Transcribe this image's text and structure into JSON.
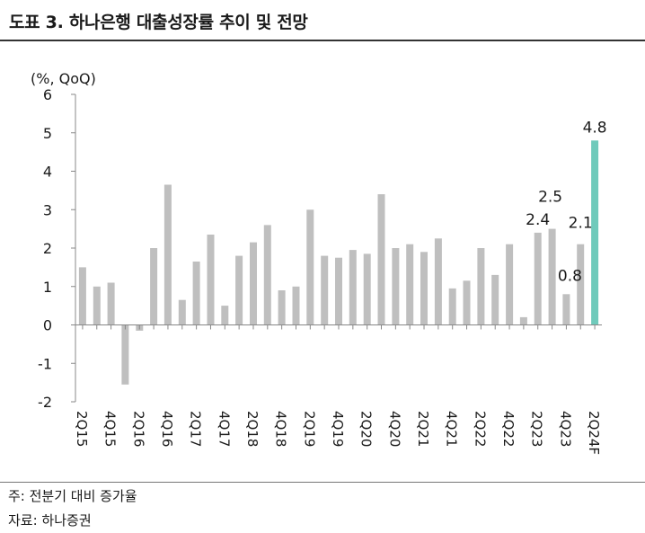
{
  "header": {
    "title": "도표 3. 하나은행 대출성장률 추이 및 전망"
  },
  "footer": {
    "note": "주: 전분기 대비 증가율",
    "source": "자료: 하나증권"
  },
  "colors": {
    "bar": "#bfbfbf",
    "highlight": "#6fcabb",
    "axis": "#888888",
    "text": "#1a1a1a"
  },
  "chart_data": {
    "type": "bar",
    "title": "",
    "unit_label": "(%, QoQ)",
    "ylim": [
      -2,
      6
    ],
    "yticks": [
      -2,
      -1,
      0,
      1,
      2,
      3,
      4,
      5,
      6
    ],
    "grid": false,
    "categories": [
      "2Q15",
      "3Q15",
      "4Q15",
      "1Q16",
      "2Q16",
      "3Q16",
      "4Q16",
      "1Q17",
      "2Q17",
      "3Q17",
      "4Q17",
      "1Q18",
      "2Q18",
      "3Q18",
      "4Q18",
      "1Q19",
      "2Q19",
      "3Q19",
      "4Q19",
      "1Q20",
      "2Q20",
      "3Q20",
      "4Q20",
      "1Q21",
      "2Q21",
      "3Q21",
      "4Q21",
      "1Q22",
      "2Q22",
      "3Q22",
      "4Q22",
      "1Q23",
      "2Q23",
      "3Q23",
      "4Q23",
      "1Q24",
      "2Q24F"
    ],
    "tick_labels": [
      "2Q15",
      "4Q15",
      "2Q16",
      "4Q16",
      "2Q17",
      "4Q17",
      "2Q18",
      "4Q18",
      "2Q19",
      "4Q19",
      "2Q20",
      "4Q20",
      "2Q21",
      "4Q21",
      "2Q22",
      "4Q22",
      "2Q23",
      "4Q23",
      "2Q24F"
    ],
    "values": [
      1.5,
      1.0,
      1.1,
      -1.55,
      -0.15,
      2.0,
      3.65,
      0.65,
      1.65,
      2.35,
      0.5,
      1.8,
      2.15,
      2.6,
      0.9,
      1.0,
      3.0,
      1.8,
      1.75,
      1.95,
      1.85,
      3.4,
      2.0,
      2.1,
      1.9,
      2.25,
      0.95,
      1.15,
      2.0,
      1.3,
      2.1,
      0.2,
      2.4,
      2.5,
      0.8,
      2.1,
      4.8
    ],
    "highlight_index": 36,
    "data_labels": [
      {
        "index": 32,
        "text": "2.4"
      },
      {
        "index": 33,
        "text": "2.5"
      },
      {
        "index": 34,
        "text": "0.8"
      },
      {
        "index": 35,
        "text": "2.1"
      },
      {
        "index": 36,
        "text": "4.8"
      }
    ]
  }
}
